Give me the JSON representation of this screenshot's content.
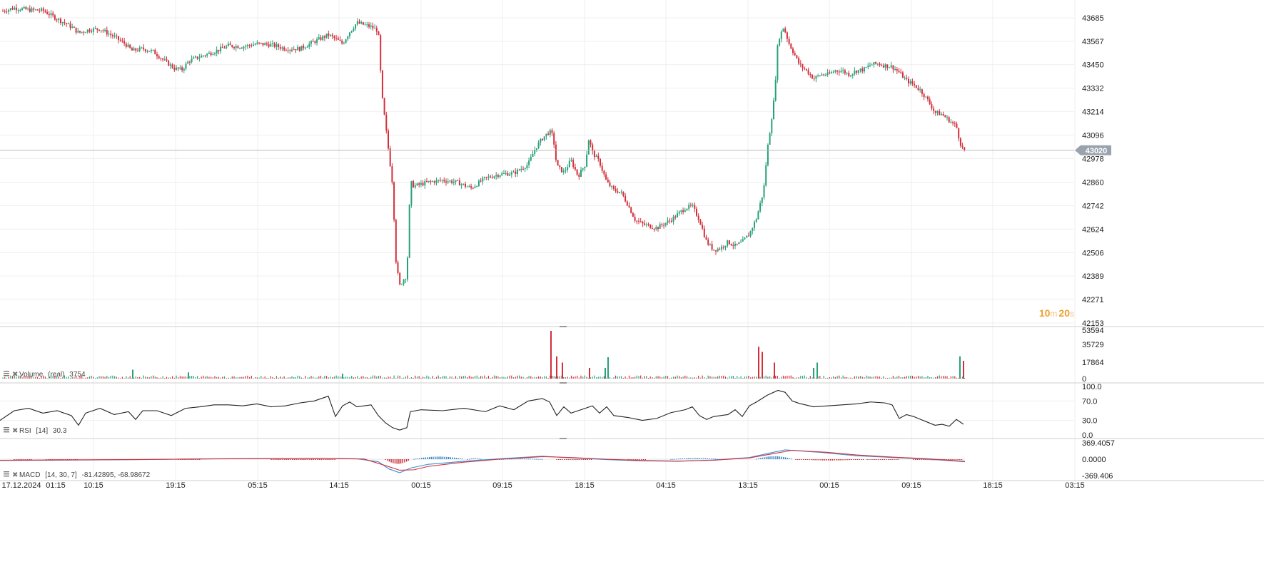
{
  "chart_data": [
    {
      "type": "candlestick",
      "pane": "price",
      "yticks": [
        43685,
        43567,
        43450,
        43332,
        43214,
        43096,
        42978,
        42860,
        42742,
        42624,
        42506,
        42389,
        42271,
        42153
      ],
      "ylim": [
        42153,
        43735
      ],
      "last_price": "43020",
      "countdown": {
        "minutes": "10",
        "m": "m",
        "seconds": "20",
        "s": "s"
      },
      "up_color": "#26a17b",
      "down_color": "#d32f3a",
      "grid": true,
      "path": [
        [
          0,
          43715
        ],
        [
          20,
          43735
        ],
        [
          40,
          43725
        ],
        [
          60,
          43722
        ],
        [
          80,
          43680
        ],
        [
          100,
          43640
        ],
        [
          110,
          43610
        ],
        [
          125,
          43625
        ],
        [
          140,
          43630
        ],
        [
          160,
          43590
        ],
        [
          175,
          43555
        ],
        [
          185,
          43520
        ],
        [
          200,
          43530
        ],
        [
          215,
          43515
        ],
        [
          230,
          43470
        ],
        [
          245,
          43430
        ],
        [
          255,
          43425
        ],
        [
          265,
          43470
        ],
        [
          280,
          43490
        ],
        [
          300,
          43515
        ],
        [
          320,
          43545
        ],
        [
          340,
          43540
        ],
        [
          360,
          43555
        ],
        [
          380,
          43550
        ],
        [
          400,
          43530
        ],
        [
          420,
          43530
        ],
        [
          440,
          43565
        ],
        [
          460,
          43600
        ],
        [
          470,
          43580
        ],
        [
          480,
          43555
        ],
        [
          490,
          43615
        ],
        [
          500,
          43660
        ],
        [
          510,
          43650
        ],
        [
          520,
          43640
        ],
        [
          530,
          43620
        ],
        [
          535,
          43300
        ],
        [
          545,
          43000
        ],
        [
          550,
          42850
        ],
        [
          555,
          42450
        ],
        [
          560,
          42340
        ],
        [
          565,
          42370
        ],
        [
          570,
          42390
        ],
        [
          575,
          42860
        ],
        [
          580,
          42840
        ],
        [
          600,
          42860
        ],
        [
          620,
          42870
        ],
        [
          640,
          42860
        ],
        [
          660,
          42830
        ],
        [
          680,
          42880
        ],
        [
          700,
          42900
        ],
        [
          720,
          42905
        ],
        [
          740,
          42950
        ],
        [
          750,
          43030
        ],
        [
          760,
          43080
        ],
        [
          770,
          43115
        ],
        [
          775,
          43090
        ],
        [
          780,
          42940
        ],
        [
          790,
          42910
        ],
        [
          800,
          42970
        ],
        [
          810,
          42890
        ],
        [
          820,
          42950
        ],
        [
          825,
          43080
        ],
        [
          830,
          43010
        ],
        [
          840,
          42960
        ],
        [
          850,
          42860
        ],
        [
          860,
          42820
        ],
        [
          870,
          42810
        ],
        [
          880,
          42745
        ],
        [
          890,
          42670
        ],
        [
          900,
          42650
        ],
        [
          910,
          42640
        ],
        [
          920,
          42630
        ],
        [
          930,
          42650
        ],
        [
          940,
          42670
        ],
        [
          950,
          42700
        ],
        [
          960,
          42730
        ],
        [
          970,
          42740
        ],
        [
          980,
          42670
        ],
        [
          990,
          42560
        ],
        [
          1000,
          42520
        ],
        [
          1010,
          42530
        ],
        [
          1020,
          42560
        ],
        [
          1030,
          42540
        ],
        [
          1040,
          42560
        ],
        [
          1050,
          42600
        ],
        [
          1060,
          42680
        ],
        [
          1070,
          42820
        ],
        [
          1075,
          43020
        ],
        [
          1080,
          43150
        ],
        [
          1085,
          43290
        ],
        [
          1090,
          43570
        ],
        [
          1098,
          43640
        ],
        [
          1105,
          43560
        ],
        [
          1112,
          43510
        ],
        [
          1120,
          43450
        ],
        [
          1130,
          43420
        ],
        [
          1140,
          43380
        ],
        [
          1150,
          43400
        ],
        [
          1160,
          43400
        ],
        [
          1170,
          43420
        ],
        [
          1180,
          43420
        ],
        [
          1190,
          43400
        ],
        [
          1200,
          43420
        ],
        [
          1210,
          43425
        ],
        [
          1220,
          43450
        ],
        [
          1230,
          43455
        ],
        [
          1240,
          43445
        ],
        [
          1250,
          43440
        ],
        [
          1260,
          43410
        ],
        [
          1270,
          43370
        ],
        [
          1280,
          43350
        ],
        [
          1290,
          43320
        ],
        [
          1300,
          43270
        ],
        [
          1310,
          43210
        ],
        [
          1320,
          43200
        ],
        [
          1330,
          43170
        ],
        [
          1340,
          43140
        ],
        [
          1345,
          43060
        ],
        [
          1350,
          43020
        ]
      ]
    },
    {
      "type": "bar",
      "pane": "volume",
      "label": "Volume",
      "label_suffix": "(real)",
      "current": "3754",
      "yticks": [
        53594,
        35729,
        17864,
        0
      ],
      "ylim": [
        0,
        53594
      ],
      "spikes": [
        [
          186,
          10000
        ],
        [
          264,
          7000
        ],
        [
          480,
          5500
        ],
        [
          772,
          53594
        ],
        [
          780,
          25000
        ],
        [
          788,
          18000
        ],
        [
          826,
          12000
        ],
        [
          848,
          12000
        ],
        [
          852,
          24000
        ],
        [
          1063,
          35729
        ],
        [
          1068,
          30000
        ],
        [
          1085,
          18000
        ],
        [
          1140,
          12000
        ],
        [
          1145,
          18000
        ],
        [
          1345,
          25000
        ],
        [
          1350,
          20000
        ]
      ]
    },
    {
      "type": "line",
      "pane": "rsi",
      "label": "RSI",
      "params": "[14]",
      "current": "30.3",
      "yticks": [
        "100.0",
        "70.0",
        "30.0",
        "0.0"
      ],
      "ylim": [
        0,
        100
      ],
      "line_color": "#222222",
      "points": [
        [
          0,
          30
        ],
        [
          20,
          50
        ],
        [
          40,
          55
        ],
        [
          60,
          45
        ],
        [
          80,
          50
        ],
        [
          100,
          40
        ],
        [
          110,
          20
        ],
        [
          120,
          45
        ],
        [
          140,
          55
        ],
        [
          160,
          42
        ],
        [
          180,
          48
        ],
        [
          190,
          32
        ],
        [
          200,
          50
        ],
        [
          220,
          50
        ],
        [
          240,
          40
        ],
        [
          260,
          55
        ],
        [
          280,
          58
        ],
        [
          300,
          62
        ],
        [
          320,
          62
        ],
        [
          340,
          60
        ],
        [
          360,
          64
        ],
        [
          380,
          58
        ],
        [
          400,
          60
        ],
        [
          420,
          66
        ],
        [
          440,
          70
        ],
        [
          460,
          80
        ],
        [
          470,
          38
        ],
        [
          480,
          60
        ],
        [
          490,
          68
        ],
        [
          500,
          58
        ],
        [
          520,
          62
        ],
        [
          530,
          40
        ],
        [
          540,
          25
        ],
        [
          550,
          15
        ],
        [
          560,
          10
        ],
        [
          570,
          15
        ],
        [
          575,
          48
        ],
        [
          590,
          52
        ],
        [
          620,
          50
        ],
        [
          650,
          55
        ],
        [
          680,
          48
        ],
        [
          700,
          60
        ],
        [
          720,
          52
        ],
        [
          740,
          70
        ],
        [
          760,
          75
        ],
        [
          770,
          68
        ],
        [
          780,
          40
        ],
        [
          790,
          58
        ],
        [
          800,
          45
        ],
        [
          820,
          55
        ],
        [
          830,
          60
        ],
        [
          840,
          45
        ],
        [
          850,
          58
        ],
        [
          860,
          40
        ],
        [
          880,
          36
        ],
        [
          900,
          30
        ],
        [
          920,
          34
        ],
        [
          940,
          46
        ],
        [
          960,
          52
        ],
        [
          970,
          58
        ],
        [
          980,
          40
        ],
        [
          990,
          32
        ],
        [
          1000,
          38
        ],
        [
          1020,
          42
        ],
        [
          1030,
          52
        ],
        [
          1040,
          38
        ],
        [
          1050,
          60
        ],
        [
          1060,
          68
        ],
        [
          1075,
          82
        ],
        [
          1090,
          92
        ],
        [
          1100,
          88
        ],
        [
          1110,
          70
        ],
        [
          1120,
          65
        ],
        [
          1140,
          58
        ],
        [
          1160,
          60
        ],
        [
          1180,
          62
        ],
        [
          1200,
          64
        ],
        [
          1220,
          68
        ],
        [
          1240,
          66
        ],
        [
          1250,
          62
        ],
        [
          1260,
          34
        ],
        [
          1270,
          42
        ],
        [
          1280,
          38
        ],
        [
          1290,
          32
        ],
        [
          1300,
          26
        ],
        [
          1310,
          20
        ],
        [
          1320,
          22
        ],
        [
          1330,
          18
        ],
        [
          1340,
          32
        ],
        [
          1350,
          22
        ]
      ]
    },
    {
      "type": "line",
      "pane": "macd",
      "label": "MACD",
      "params": "[14,  30,  7]",
      "values_text": "-81.42895,  -68.98672",
      "yticks": [
        "369.4057",
        "0.0000",
        "-369.406"
      ],
      "ylim": [
        -369.406,
        369.4057
      ],
      "series": [
        {
          "color": "#3a8fd6",
          "points": [
            [
              0,
              -30
            ],
            [
              200,
              -10
            ],
            [
              300,
              10
            ],
            [
              450,
              20
            ],
            [
              500,
              10
            ],
            [
              530,
              -60
            ],
            [
              545,
              -230
            ],
            [
              560,
              -320
            ],
            [
              575,
              -210
            ],
            [
              600,
              -120
            ],
            [
              650,
              -50
            ],
            [
              700,
              10
            ],
            [
              760,
              70
            ],
            [
              790,
              40
            ],
            [
              850,
              -10
            ],
            [
              900,
              -40
            ],
            [
              950,
              -50
            ],
            [
              1000,
              -20
            ],
            [
              1050,
              40
            ],
            [
              1080,
              150
            ],
            [
              1100,
              220
            ],
            [
              1150,
              160
            ],
            [
              1200,
              80
            ],
            [
              1250,
              40
            ],
            [
              1300,
              0
            ],
            [
              1352,
              -60
            ]
          ]
        },
        {
          "color": "#d32f3a",
          "points": [
            [
              0,
              -25
            ],
            [
              200,
              -8
            ],
            [
              300,
              8
            ],
            [
              450,
              18
            ],
            [
              510,
              5
            ],
            [
              540,
              -150
            ],
            [
              560,
              -260
            ],
            [
              580,
              -250
            ],
            [
              600,
              -170
            ],
            [
              650,
              -70
            ],
            [
              700,
              0
            ],
            [
              760,
              60
            ],
            [
              800,
              40
            ],
            [
              850,
              0
            ],
            [
              900,
              -30
            ],
            [
              950,
              -45
            ],
            [
              1000,
              -25
            ],
            [
              1050,
              30
            ],
            [
              1090,
              150
            ],
            [
              1110,
              210
            ],
            [
              1160,
              160
            ],
            [
              1200,
              100
            ],
            [
              1250,
              50
            ],
            [
              1300,
              10
            ],
            [
              1352,
              -50
            ]
          ]
        }
      ],
      "histogram_segments": [
        [
          20,
          45,
          -15
        ],
        [
          65,
          110,
          -12
        ],
        [
          250,
          280,
          -8
        ],
        [
          380,
          470,
          -10
        ],
        [
          540,
          575,
          -110
        ],
        [
          580,
          650,
          60
        ],
        [
          655,
          675,
          20
        ],
        [
          700,
          760,
          15
        ],
        [
          780,
          830,
          -20
        ],
        [
          880,
          905,
          -15
        ],
        [
          940,
          1010,
          25
        ],
        [
          1060,
          1110,
          70
        ],
        [
          1115,
          1210,
          -30
        ],
        [
          1215,
          1260,
          -10
        ],
        [
          1280,
          1350,
          -25
        ]
      ]
    }
  ],
  "x_axis": {
    "labels": [
      {
        "t": "17.12.2024",
        "x": 30
      },
      {
        "t": "01:15",
        "x": 78
      },
      {
        "t": "10:15",
        "x": 131
      },
      {
        "t": "19:15",
        "x": 246
      },
      {
        "t": "05:15",
        "x": 361
      },
      {
        "t": "14:15",
        "x": 475
      },
      {
        "t": "00:15",
        "x": 590
      },
      {
        "t": "09:15",
        "x": 704
      },
      {
        "t": "18:15",
        "x": 819
      },
      {
        "t": "04:15",
        "x": 933
      },
      {
        "t": "13:15",
        "x": 1048
      },
      {
        "t": "00:15",
        "x": 1162
      },
      {
        "t": "09:15",
        "x": 1277
      },
      {
        "t": "18:15",
        "x": 1391
      },
      {
        "t": "03:15",
        "x": 1506
      }
    ]
  },
  "colors": {
    "grid": "#efefef",
    "separator": "#cfcfcf",
    "price_line": "#b8b8b8",
    "price_tag_bg": "#9aa3ad",
    "countdown": "#f0a030",
    "axis_text": "#222222"
  }
}
